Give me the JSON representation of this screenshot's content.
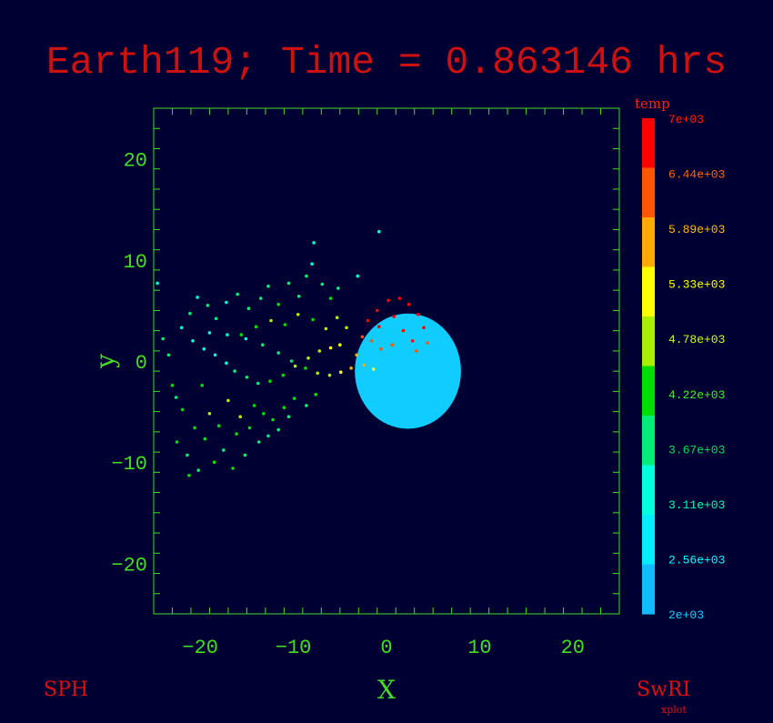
{
  "title": "Earth119; Time = 0.863146 hrs",
  "footer": {
    "left": "SPH",
    "right": "SwRI",
    "right_sub": "xplot"
  },
  "colors": {
    "background": "#000033",
    "axes": "#44dd22",
    "title": "#cc1111",
    "planet": "#11ccff"
  },
  "chart_data": {
    "type": "scatter",
    "title": "Earth119; Time = 0.863146 hrs",
    "xlabel": "X",
    "ylabel": "y",
    "xlim": [
      -25,
      25
    ],
    "ylim": [
      -25,
      25
    ],
    "x_ticks": [
      -20,
      -10,
      0,
      10,
      20
    ],
    "y_ticks": [
      20,
      10,
      0,
      -10,
      -20
    ],
    "grid": false,
    "bodies": [
      {
        "name": "",
        "type": "disk",
        "cx": 2.3,
        "cy": -1.0,
        "r": 5.7,
        "color": "#11ccff"
      }
    ],
    "colorbar": {
      "label": "temp",
      "min": 2000,
      "max": 7000,
      "ticks": [
        "7e+03",
        "6.44e+03",
        "5.89e+03",
        "5.33e+03",
        "4.78e+03",
        "4.22e+03",
        "3.67e+03",
        "3.11e+03",
        "2.56e+03",
        "2e+03"
      ],
      "tick_colors": [
        "#ff2200",
        "#ff6600",
        "#ffbb00",
        "#ffff00",
        "#ccff00",
        "#44ee22",
        "#00dd55",
        "#00ffaa",
        "#00ffff",
        "#11ccff"
      ],
      "bands": [
        "#ff0000",
        "#ff5500",
        "#ffaa00",
        "#ffff00",
        "#aaee00",
        "#00dd00",
        "#00ee77",
        "#00ffdd",
        "#00eeff",
        "#11bbff"
      ]
    },
    "series": [
      {
        "color_by": "temp",
        "points": [
          [
            -24.6,
            7.7,
            3300
          ],
          [
            -24.0,
            2.2,
            3700
          ],
          [
            -23.4,
            0.6,
            3500
          ],
          [
            -23.0,
            -2.4,
            4200
          ],
          [
            -22.6,
            -3.6,
            3900
          ],
          [
            -22.5,
            -8.0,
            4100
          ],
          [
            -21.9,
            -4.8,
            4300
          ],
          [
            -21.4,
            -9.3,
            3900
          ],
          [
            -21.2,
            -11.3,
            4000
          ],
          [
            -20.6,
            -6.6,
            4200
          ],
          [
            -20.2,
            -10.8,
            3800
          ],
          [
            -19.8,
            -2.4,
            4400
          ],
          [
            -19.5,
            -7.7,
            4000
          ],
          [
            -19.0,
            -5.2,
            4600
          ],
          [
            -18.5,
            -10.0,
            4100
          ],
          [
            -18.0,
            -6.4,
            4400
          ],
          [
            -17.5,
            -8.8,
            3900
          ],
          [
            -17.0,
            -3.9,
            4700
          ],
          [
            -16.5,
            -10.6,
            4000
          ],
          [
            -16.1,
            -7.2,
            4200
          ],
          [
            -15.7,
            -5.5,
            4500
          ],
          [
            -15.2,
            -9.3,
            3800
          ],
          [
            -14.7,
            -6.6,
            4100
          ],
          [
            -14.2,
            -4.4,
            4400
          ],
          [
            -13.7,
            -8.0,
            3900
          ],
          [
            -13.2,
            -5.2,
            4100
          ],
          [
            -12.7,
            -7.4,
            3800
          ],
          [
            -12.2,
            -5.8,
            4000
          ],
          [
            -11.6,
            -6.8,
            3700
          ],
          [
            -11.0,
            -4.6,
            4200
          ],
          [
            -10.5,
            -5.5,
            3800
          ],
          [
            -9.9,
            -3.7,
            4300
          ],
          [
            -8.6,
            -4.4,
            3900
          ],
          [
            -7.6,
            -3.3,
            4200
          ],
          [
            -22.0,
            3.3,
            3400
          ],
          [
            -21.1,
            4.7,
            3600
          ],
          [
            -20.3,
            6.3,
            3300
          ],
          [
            -19.2,
            5.5,
            3500
          ],
          [
            -18.3,
            4.2,
            3700
          ],
          [
            -17.2,
            5.8,
            3400
          ],
          [
            -16.0,
            6.6,
            3600
          ],
          [
            -14.8,
            5.2,
            3800
          ],
          [
            -13.5,
            6.2,
            3900
          ],
          [
            -12.7,
            7.4,
            3500
          ],
          [
            -11.6,
            5.6,
            4000
          ],
          [
            -10.5,
            7.7,
            3700
          ],
          [
            -9.4,
            6.4,
            3800
          ],
          [
            -8.6,
            8.4,
            3500
          ],
          [
            -8.0,
            9.6,
            3400
          ],
          [
            -7.8,
            11.7,
            3300
          ],
          [
            -6.9,
            7.6,
            3900
          ],
          [
            -6.0,
            6.2,
            4000
          ],
          [
            -5.2,
            7.2,
            3700
          ],
          [
            -3.1,
            8.4,
            3400
          ],
          [
            -0.8,
            12.8,
            3300
          ],
          [
            -15.6,
            2.6,
            4300
          ],
          [
            -14.0,
            3.4,
            4100
          ],
          [
            -12.4,
            4.0,
            4500
          ],
          [
            -10.9,
            3.6,
            4200
          ],
          [
            -9.5,
            4.6,
            4600
          ],
          [
            -7.9,
            4.1,
            4400
          ],
          [
            -6.5,
            3.2,
            4700
          ],
          [
            -5.3,
            4.3,
            4600
          ],
          [
            -4.3,
            3.3,
            4900
          ],
          [
            -19.6,
            1.2,
            3200
          ],
          [
            -18.4,
            0.6,
            3300
          ],
          [
            -17.2,
            -0.2,
            3400
          ],
          [
            -16.3,
            -1.0,
            3500
          ],
          [
            -15.0,
            -1.6,
            3700
          ],
          [
            -13.8,
            -2.2,
            3900
          ],
          [
            -12.5,
            -2.0,
            4100
          ],
          [
            -11.1,
            -1.4,
            4300
          ],
          [
            -9.8,
            -0.5,
            4500
          ],
          [
            -8.4,
            0.3,
            4700
          ],
          [
            -7.2,
            1.0,
            4900
          ],
          [
            -6.0,
            1.3,
            5100
          ],
          [
            -5.0,
            1.6,
            5400
          ],
          [
            -20.8,
            2.0,
            3300
          ],
          [
            -19.0,
            2.8,
            3200
          ],
          [
            -17.1,
            2.6,
            3300
          ],
          [
            -15.1,
            2.2,
            3400
          ],
          [
            -13.3,
            1.6,
            3500
          ],
          [
            -11.6,
            0.8,
            3700
          ],
          [
            -10.2,
            0.0,
            3900
          ],
          [
            -8.7,
            -0.7,
            4200
          ],
          [
            -7.4,
            -1.2,
            4500
          ],
          [
            -6.1,
            -1.4,
            4700
          ],
          [
            -4.9,
            -1.1,
            5100
          ],
          [
            -3.8,
            -0.7,
            5500
          ],
          [
            -3.2,
            0.6,
            5900
          ],
          [
            -2.6,
            2.4,
            6200
          ],
          [
            -2.0,
            4.0,
            6500
          ],
          [
            -1.0,
            5.0,
            6800
          ],
          [
            0.2,
            6.0,
            6900
          ],
          [
            1.4,
            6.2,
            6700
          ],
          [
            2.4,
            5.6,
            6900
          ],
          [
            3.4,
            4.6,
            6600
          ],
          [
            4.0,
            3.3,
            6500
          ],
          [
            4.4,
            1.8,
            6300
          ],
          [
            -1.6,
            2.0,
            6400
          ],
          [
            -0.6,
            1.2,
            6100
          ],
          [
            0.6,
            1.6,
            6300
          ],
          [
            1.8,
            3.0,
            6600
          ],
          [
            2.8,
            2.0,
            6500
          ],
          [
            -0.8,
            3.4,
            6700
          ],
          [
            0.8,
            4.4,
            6800
          ],
          [
            3.2,
            1.0,
            6200
          ],
          [
            -2.4,
            -0.4,
            5700
          ],
          [
            -1.4,
            -0.8,
            5300
          ]
        ]
      }
    ]
  }
}
